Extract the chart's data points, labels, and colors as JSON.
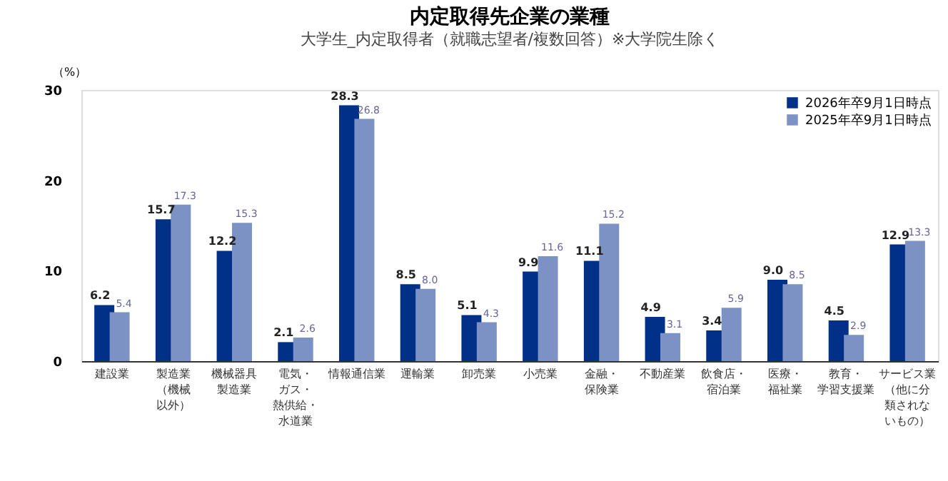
{
  "chart_data": {
    "type": "bar",
    "title": "内定取得先企業の業種",
    "subtitle": "大学生_内定取得者（就職志望者/複数回答）※大学院生除く",
    "ylabel": "（%）",
    "categories": [
      "建設業",
      "製造業（機械以外）",
      "機械器具製造業",
      "電気・ガス・熱供給・水道業",
      "情報通信業",
      "運輸業",
      "卸売業",
      "小売業",
      "金融・保険業",
      "不動産業",
      "飲食店・宿泊業",
      "医療・福祉業",
      "教育・学習支援業",
      "サービス業（他に分類されないもの）"
    ],
    "series": [
      {
        "name": "2026年卒9月1日時点",
        "color": "#003087",
        "values": [
          6.2,
          15.7,
          12.2,
          2.1,
          28.3,
          8.5,
          5.1,
          9.9,
          11.1,
          4.9,
          3.4,
          9.0,
          4.5,
          12.9
        ],
        "value_labels": [
          "6.2",
          "15.7",
          "12.2",
          "2.1",
          "28.3",
          "8.5",
          "5.1",
          "9.9",
          "11.1",
          "4.9",
          "3.4",
          "9.0",
          "4.5",
          "12.9"
        ]
      },
      {
        "name": "2025年卒9月1日時点",
        "color": "#7d92c4",
        "values": [
          5.4,
          17.3,
          15.3,
          2.6,
          26.8,
          8.0,
          4.3,
          11.6,
          15.2,
          3.1,
          5.9,
          8.5,
          2.9,
          13.3
        ],
        "value_labels": [
          "5.4",
          "17.3",
          "15.3",
          "2.6",
          "26.8",
          "8.0",
          "4.3",
          "11.6",
          "15.2",
          "3.1",
          "5.9",
          "8.5",
          "2.9",
          "13.3"
        ]
      }
    ],
    "ylim": [
      0,
      30
    ],
    "yticks": [
      0,
      10,
      20,
      30
    ],
    "grid": false,
    "legend": "top right"
  }
}
